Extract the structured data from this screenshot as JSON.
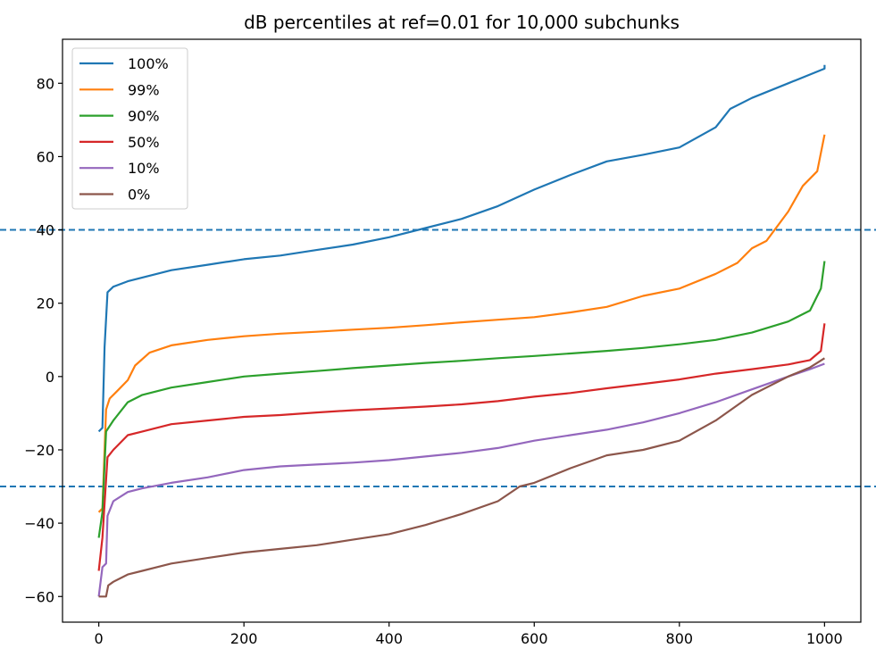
{
  "chart_data": {
    "type": "line",
    "title": "dB percentiles at ref=0.01 for 10,000 subchunks",
    "xlabel": "",
    "ylabel": "",
    "xlim": [
      -50,
      1050
    ],
    "ylim": [
      -67,
      92
    ],
    "xticks": [
      0,
      200,
      400,
      600,
      800,
      1000
    ],
    "yticks": [
      -60,
      -40,
      -20,
      0,
      20,
      40,
      60,
      80
    ],
    "xtick_labels": [
      "0",
      "200",
      "400",
      "600",
      "800",
      "1000"
    ],
    "ytick_labels": [
      "−60",
      "−40",
      "−20",
      "0",
      "20",
      "40",
      "60",
      "80"
    ],
    "legend_position": "top-left",
    "grid": false,
    "hlines": [
      {
        "y": 40,
        "style": "dashed",
        "color": "#1f77b4"
      },
      {
        "y": -30,
        "style": "dashed",
        "color": "#1f77b4"
      }
    ],
    "series": [
      {
        "name": "100%",
        "color": "#1f77b4",
        "points": [
          [
            0,
            -15
          ],
          [
            5,
            -14
          ],
          [
            8,
            8
          ],
          [
            12,
            23
          ],
          [
            20,
            24.5
          ],
          [
            40,
            26
          ],
          [
            60,
            27
          ],
          [
            80,
            28
          ],
          [
            100,
            29
          ],
          [
            150,
            30.5
          ],
          [
            200,
            32
          ],
          [
            250,
            33
          ],
          [
            300,
            34.5
          ],
          [
            350,
            36
          ],
          [
            400,
            38
          ],
          [
            450,
            40.5
          ],
          [
            500,
            43
          ],
          [
            550,
            46.5
          ],
          [
            600,
            51
          ],
          [
            650,
            55
          ],
          [
            700,
            58.7
          ],
          [
            750,
            60.5
          ],
          [
            800,
            62.5
          ],
          [
            850,
            68
          ],
          [
            870,
            73
          ],
          [
            900,
            76
          ],
          [
            950,
            80
          ],
          [
            1000,
            84
          ],
          [
            1000,
            85
          ]
        ]
      },
      {
        "name": "99%",
        "color": "#ff7f0e",
        "points": [
          [
            0,
            -37
          ],
          [
            5,
            -36
          ],
          [
            10,
            -9
          ],
          [
            15,
            -6
          ],
          [
            25,
            -4
          ],
          [
            40,
            -1
          ],
          [
            50,
            3
          ],
          [
            70,
            6.5
          ],
          [
            100,
            8.5
          ],
          [
            150,
            10
          ],
          [
            200,
            11
          ],
          [
            250,
            11.7
          ],
          [
            300,
            12.2
          ],
          [
            350,
            12.8
          ],
          [
            400,
            13.3
          ],
          [
            450,
            14
          ],
          [
            500,
            14.8
          ],
          [
            550,
            15.5
          ],
          [
            600,
            16.2
          ],
          [
            650,
            17.5
          ],
          [
            700,
            19
          ],
          [
            750,
            22
          ],
          [
            800,
            24
          ],
          [
            850,
            28
          ],
          [
            880,
            31
          ],
          [
            900,
            35
          ],
          [
            920,
            37
          ],
          [
            950,
            45
          ],
          [
            970,
            52
          ],
          [
            990,
            56
          ],
          [
            1000,
            66
          ]
        ]
      },
      {
        "name": "90%",
        "color": "#2ca02c",
        "points": [
          [
            0,
            -44
          ],
          [
            5,
            -37
          ],
          [
            10,
            -15
          ],
          [
            20,
            -12
          ],
          [
            40,
            -7
          ],
          [
            60,
            -5
          ],
          [
            100,
            -3
          ],
          [
            150,
            -1.5
          ],
          [
            200,
            0
          ],
          [
            250,
            0.8
          ],
          [
            300,
            1.5
          ],
          [
            350,
            2.3
          ],
          [
            400,
            3
          ],
          [
            450,
            3.7
          ],
          [
            500,
            4.3
          ],
          [
            550,
            5
          ],
          [
            600,
            5.6
          ],
          [
            650,
            6.3
          ],
          [
            700,
            7
          ],
          [
            750,
            7.8
          ],
          [
            800,
            8.8
          ],
          [
            850,
            10
          ],
          [
            900,
            12
          ],
          [
            950,
            15
          ],
          [
            980,
            18
          ],
          [
            995,
            24
          ],
          [
            1000,
            31.5
          ]
        ]
      },
      {
        "name": "50%",
        "color": "#d62728",
        "points": [
          [
            0,
            -53
          ],
          [
            5,
            -44
          ],
          [
            12,
            -22
          ],
          [
            20,
            -20
          ],
          [
            40,
            -16
          ],
          [
            60,
            -15
          ],
          [
            100,
            -13
          ],
          [
            150,
            -12
          ],
          [
            200,
            -11
          ],
          [
            250,
            -10.5
          ],
          [
            300,
            -9.8
          ],
          [
            350,
            -9.2
          ],
          [
            400,
            -8.7
          ],
          [
            450,
            -8.2
          ],
          [
            500,
            -7.6
          ],
          [
            550,
            -6.7
          ],
          [
            600,
            -5.5
          ],
          [
            650,
            -4.5
          ],
          [
            700,
            -3.2
          ],
          [
            750,
            -2
          ],
          [
            800,
            -0.8
          ],
          [
            850,
            0.8
          ],
          [
            900,
            2
          ],
          [
            950,
            3.3
          ],
          [
            980,
            4.5
          ],
          [
            995,
            7
          ],
          [
            1000,
            14.5
          ]
        ]
      },
      {
        "name": "10%",
        "color": "#9467bd",
        "points": [
          [
            0,
            -60
          ],
          [
            5,
            -52
          ],
          [
            10,
            -51
          ],
          [
            12,
            -38
          ],
          [
            20,
            -34
          ],
          [
            40,
            -31.5
          ],
          [
            60,
            -30.5
          ],
          [
            100,
            -29
          ],
          [
            150,
            -27.5
          ],
          [
            200,
            -25.5
          ],
          [
            250,
            -24.5
          ],
          [
            300,
            -24
          ],
          [
            350,
            -23.5
          ],
          [
            400,
            -22.8
          ],
          [
            450,
            -21.8
          ],
          [
            500,
            -20.8
          ],
          [
            550,
            -19.5
          ],
          [
            600,
            -17.5
          ],
          [
            650,
            -16
          ],
          [
            700,
            -14.5
          ],
          [
            750,
            -12.5
          ],
          [
            800,
            -10
          ],
          [
            850,
            -7
          ],
          [
            900,
            -3.5
          ],
          [
            950,
            0
          ],
          [
            980,
            2
          ],
          [
            1000,
            3.5
          ]
        ]
      },
      {
        "name": "0%",
        "color": "#8c564b",
        "points": [
          [
            0,
            -60
          ],
          [
            10,
            -60
          ],
          [
            13,
            -57
          ],
          [
            20,
            -56
          ],
          [
            40,
            -54
          ],
          [
            60,
            -53
          ],
          [
            100,
            -51
          ],
          [
            150,
            -49.5
          ],
          [
            200,
            -48
          ],
          [
            250,
            -47
          ],
          [
            300,
            -46
          ],
          [
            350,
            -44.5
          ],
          [
            400,
            -43
          ],
          [
            450,
            -40.5
          ],
          [
            500,
            -37.5
          ],
          [
            550,
            -34
          ],
          [
            580,
            -30
          ],
          [
            600,
            -29
          ],
          [
            650,
            -25
          ],
          [
            700,
            -21.5
          ],
          [
            750,
            -20
          ],
          [
            800,
            -17.5
          ],
          [
            850,
            -12
          ],
          [
            900,
            -5
          ],
          [
            950,
            0
          ],
          [
            980,
            2.5
          ],
          [
            1000,
            5
          ]
        ]
      }
    ]
  }
}
